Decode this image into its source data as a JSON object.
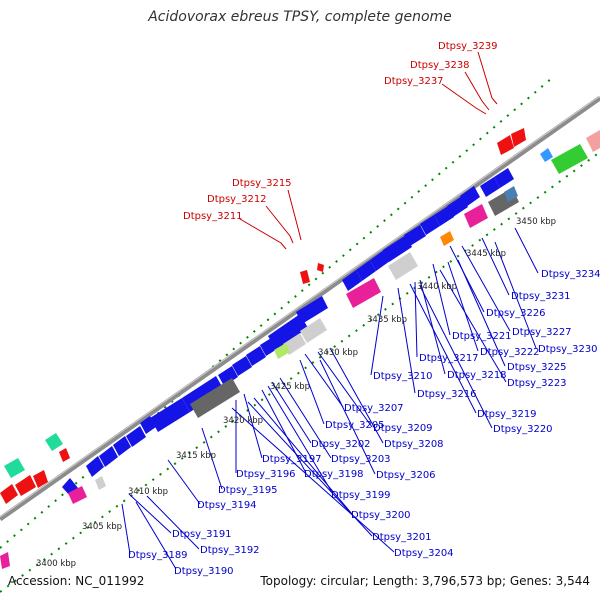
{
  "title": "Acidovorax ebreus TPSY, complete genome",
  "footer": {
    "accession": "Accession: NC_011992",
    "topology": "Topology: circular; Length: 3,796,573 bp; Genes: 3,544"
  },
  "colors": {
    "backbone": "#8c8c8c",
    "dots_outer": "#008800",
    "dots_inner": "#008800",
    "forward_label": "#cc0000",
    "reverse_label": "#0000cc",
    "cds_blue": "#1414e6",
    "cds_red": "#ee1111",
    "cds_grey": "#666666",
    "cds_lightgrey": "#cfcfcf",
    "cds_pink": "#e8209a",
    "cds_green": "#33cc33",
    "cds_teal": "#1fdc9a",
    "cds_orange": "#ff8800",
    "cds_lime": "#b2e86a"
  },
  "ticks": [
    "3400 kbp",
    "3405 kbp",
    "3410 kbp",
    "3415 kbp",
    "3420 kbp",
    "3425 kbp",
    "3430 kbp",
    "3435 kbp",
    "3440 kbp",
    "3445 kbp",
    "3450 kbp"
  ],
  "forward_labels": [
    "Dtpsy_3239",
    "Dtpsy_3238",
    "Dtpsy_3237",
    "Dtpsy_3215",
    "Dtpsy_3212",
    "Dtpsy_3211"
  ],
  "reverse_labels": [
    "Dtpsy_3234",
    "Dtpsy_3231",
    "Dtpsy_3226",
    "Dtpsy_3227",
    "Dtpsy_3230",
    "Dtpsy_3221",
    "Dtpsy_3222",
    "Dtpsy_3225",
    "Dtpsy_3217",
    "Dtpsy_3218",
    "Dtpsy_3223",
    "Dtpsy_3210",
    "Dtpsy_3216",
    "Dtpsy_3219",
    "Dtpsy_3207",
    "Dtpsy_3220",
    "Dtpsy_3205",
    "Dtpsy_3209",
    "Dtpsy_3202",
    "Dtpsy_3208",
    "Dtpsy_3203",
    "Dtpsy_3197",
    "Dtpsy_3196",
    "Dtpsy_3198",
    "Dtpsy_3206",
    "Dtpsy_3195",
    "Dtpsy_3199",
    "Dtpsy_3194",
    "Dtpsy_3200",
    "Dtpsy_3201",
    "Dtpsy_3191",
    "Dtpsy_3204",
    "Dtpsy_3192",
    "Dtpsy_3189",
    "Dtpsy_3190"
  ]
}
